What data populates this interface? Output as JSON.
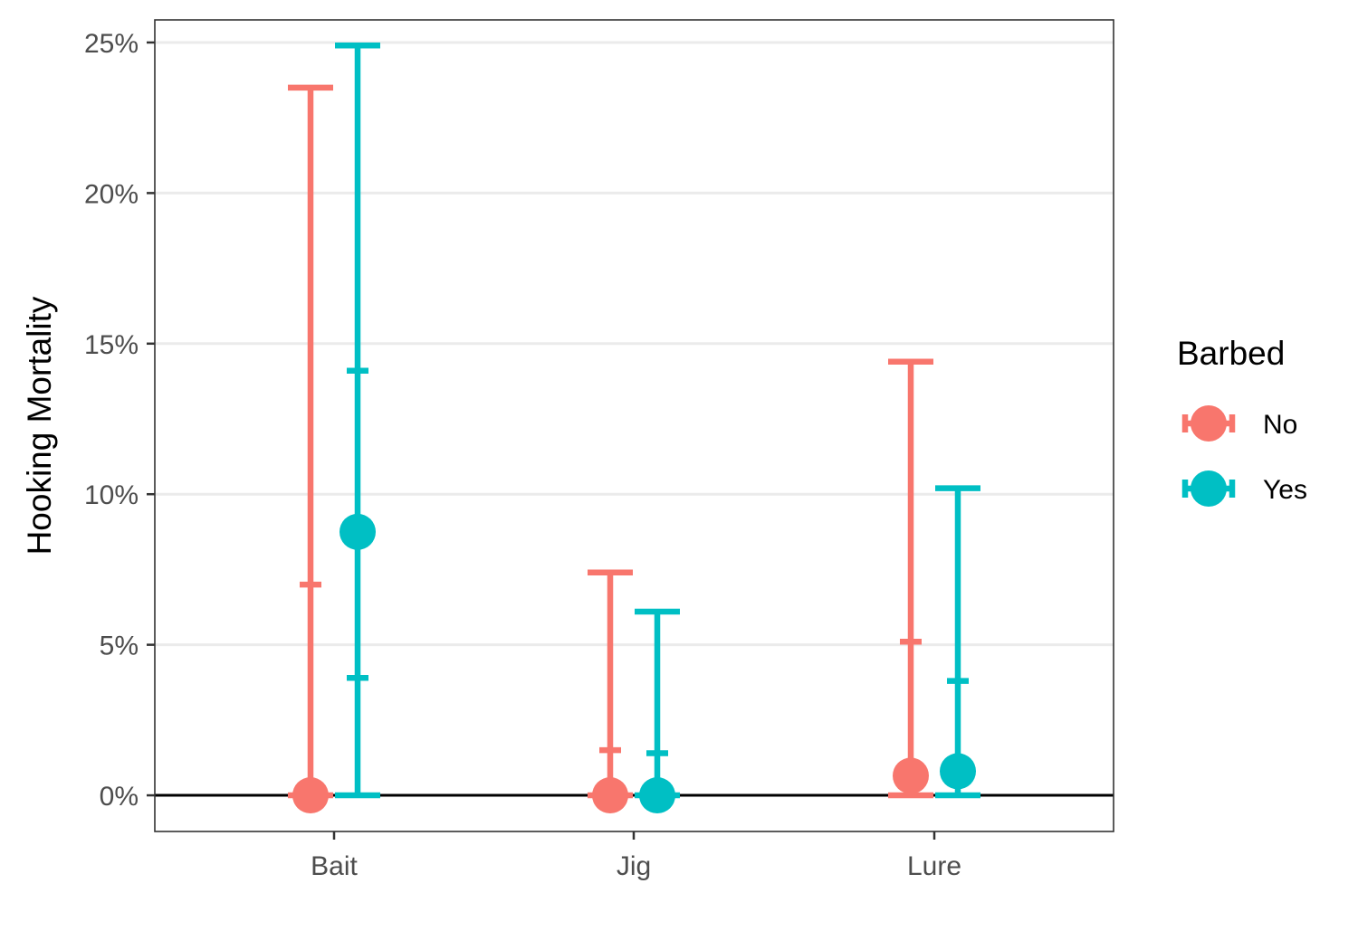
{
  "chart_data": {
    "type": "errorbar",
    "title": "",
    "xlabel": "",
    "ylabel": "Hooking Mortality",
    "ylim": [
      -0.012,
      0.2575
    ],
    "y_tick_values": [
      0,
      0.05,
      0.1,
      0.15,
      0.2,
      0.25
    ],
    "y_tick_labels": [
      "0%",
      "5%",
      "10%",
      "15%",
      "20%",
      "25%"
    ],
    "categories": [
      "Bait",
      "Jig",
      "Lure"
    ],
    "grid": "horizontal major",
    "reference_line_y": 0,
    "legend": {
      "title": "Barbed",
      "position": "right"
    },
    "series": [
      {
        "name": "No",
        "color": "#F8766D",
        "points": [
          {
            "category": "Bait",
            "estimate": 0.0,
            "lower": 0.0,
            "upper": 0.235,
            "inner_upper": 0.07
          },
          {
            "category": "Jig",
            "estimate": 0.0,
            "lower": 0.0,
            "upper": 0.074,
            "inner_upper": 0.015
          },
          {
            "category": "Lure",
            "estimate": 0.0065,
            "lower": 0.0,
            "upper": 0.144,
            "inner_upper": 0.051
          }
        ]
      },
      {
        "name": "Yes",
        "color": "#00BFC4",
        "points": [
          {
            "category": "Bait",
            "estimate": 0.0875,
            "lower": 0.0,
            "upper": 0.249,
            "inner_upper": 0.141,
            "inner_lower": 0.039
          },
          {
            "category": "Jig",
            "estimate": 0.0,
            "lower": 0.0,
            "upper": 0.061,
            "inner_upper": 0.014
          },
          {
            "category": "Lure",
            "estimate": 0.008,
            "lower": 0.0,
            "upper": 0.102,
            "inner_upper": 0.038
          }
        ]
      }
    ]
  }
}
